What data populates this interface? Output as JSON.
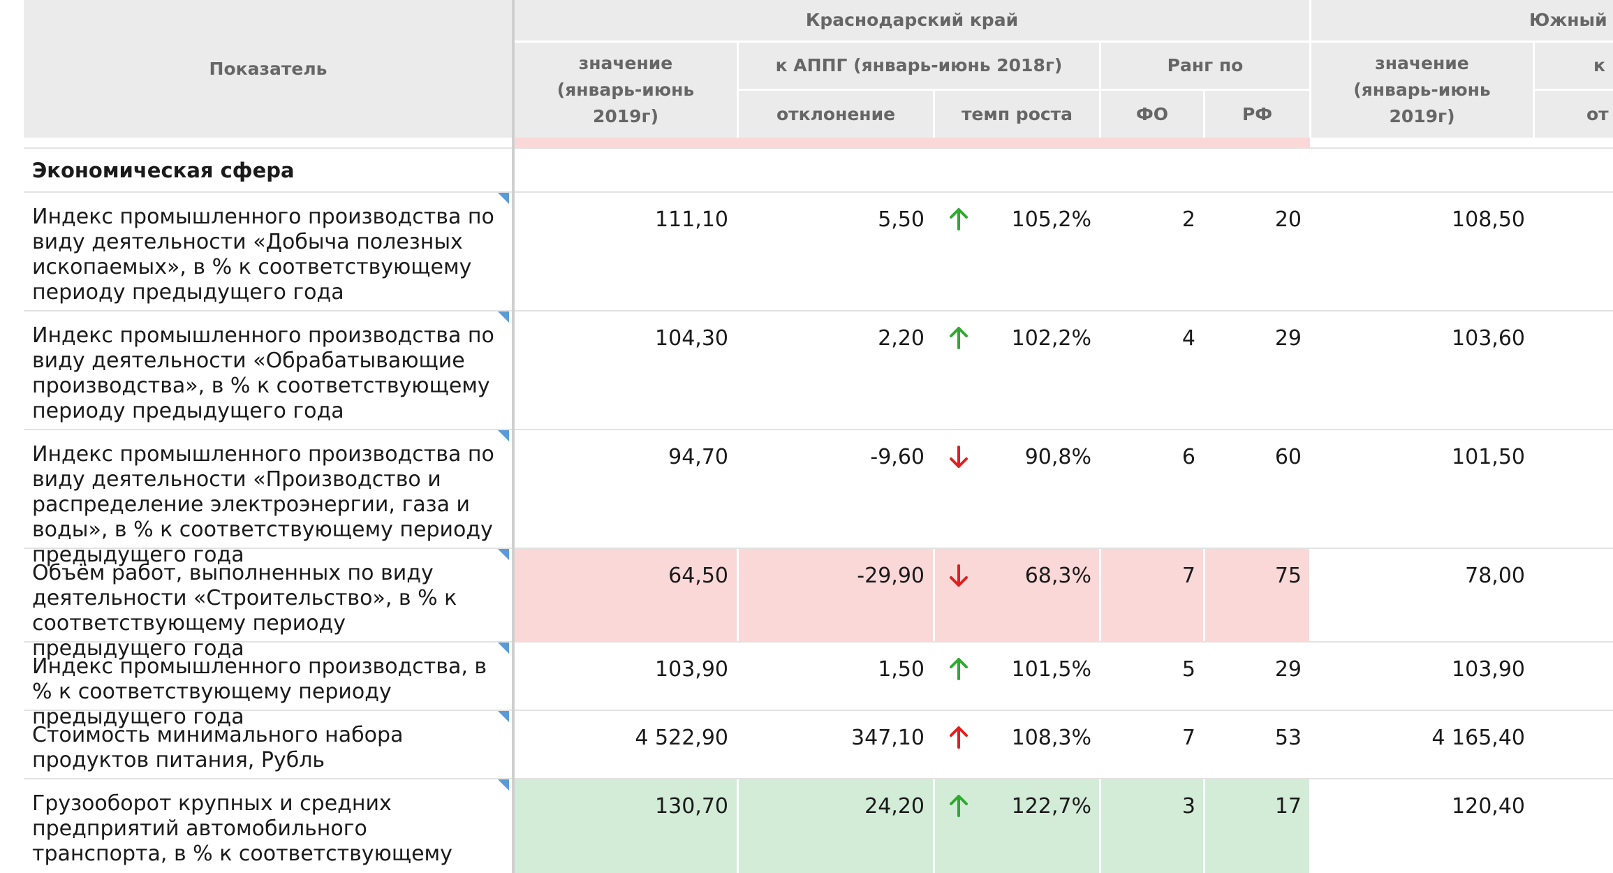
{
  "header": {
    "indicator": "Показатель",
    "region_main": "Краснодарский край",
    "region_next": "Южный",
    "value_col": "значение (январь-июнь 2019г)",
    "appg_group": "к АППГ (январь-июнь 2018г)",
    "deviation": "отклонение",
    "growth": "темп роста",
    "rank_group": "Ранг по",
    "rank_fo": "ФО",
    "rank_rf": "РФ",
    "next_value_col": "значение (январь-июнь 2019г)",
    "next_partial_k": "к",
    "next_partial_ot": "от"
  },
  "section": {
    "title": "Экономическая сфера"
  },
  "rows": [
    {
      "label": "Индекс промышленного производства по виду деятельности «Добыча полезных ископаемых», в % к соответствующему периоду предыдущего года",
      "value": "111,10",
      "deviation": "5,50",
      "trend": "up-green",
      "growth": "105,2%",
      "fo": "2",
      "rf": "20",
      "next_value": "108,50",
      "highlight": "none"
    },
    {
      "label": "Индекс промышленного производства по виду деятельности «Обрабатывающие производства», в % к соответствующему периоду предыдущего года",
      "value": "104,30",
      "deviation": "2,20",
      "trend": "up-green",
      "growth": "102,2%",
      "fo": "4",
      "rf": "29",
      "next_value": "103,60",
      "highlight": "none"
    },
    {
      "label": "Индекс промышленного производства по виду деятельности «Производство и распределение электроэнергии, газа и воды», в % к соответствующему периоду предыдущего года",
      "value": "94,70",
      "deviation": "-9,60",
      "trend": "down-red",
      "growth": "90,8%",
      "fo": "6",
      "rf": "60",
      "next_value": "101,50",
      "highlight": "none"
    },
    {
      "label": "Объём работ, выполненных по виду деятельности «Строительство», в % к соответствующему периоду предыдущего года",
      "value": "64,50",
      "deviation": "-29,90",
      "trend": "down-red",
      "growth": "68,3%",
      "fo": "7",
      "rf": "75",
      "next_value": "78,00",
      "highlight": "red"
    },
    {
      "label": "Индекс промышленного производства, в % к соответствующему периоду предыдущего года",
      "value": "103,90",
      "deviation": "1,50",
      "trend": "up-green",
      "growth": "101,5%",
      "fo": "5",
      "rf": "29",
      "next_value": "103,90",
      "highlight": "none"
    },
    {
      "label": "Стоимость минимального набора продуктов питания, Рубль",
      "value": "4 522,90",
      "deviation": "347,10",
      "trend": "up-red",
      "growth": "108,3%",
      "fo": "7",
      "rf": "53",
      "next_value": "4 165,40",
      "highlight": "none"
    },
    {
      "label": "Грузооборот крупных и средних предприятий автомобильного транспорта, в % к соответствующему периоду предыдущего года",
      "value": "130,70",
      "deviation": "24,20",
      "trend": "up-green",
      "growth": "122,7%",
      "fo": "3",
      "rf": "17",
      "next_value": "120,40",
      "highlight": "green"
    }
  ],
  "colors": {
    "up_green": "#2eaa2e",
    "down_red": "#e02020",
    "up_red": "#e02020",
    "red_row": "#fbd8d8",
    "green_row": "#d3ecd8",
    "corner_marker": "#5b9bd5"
  }
}
